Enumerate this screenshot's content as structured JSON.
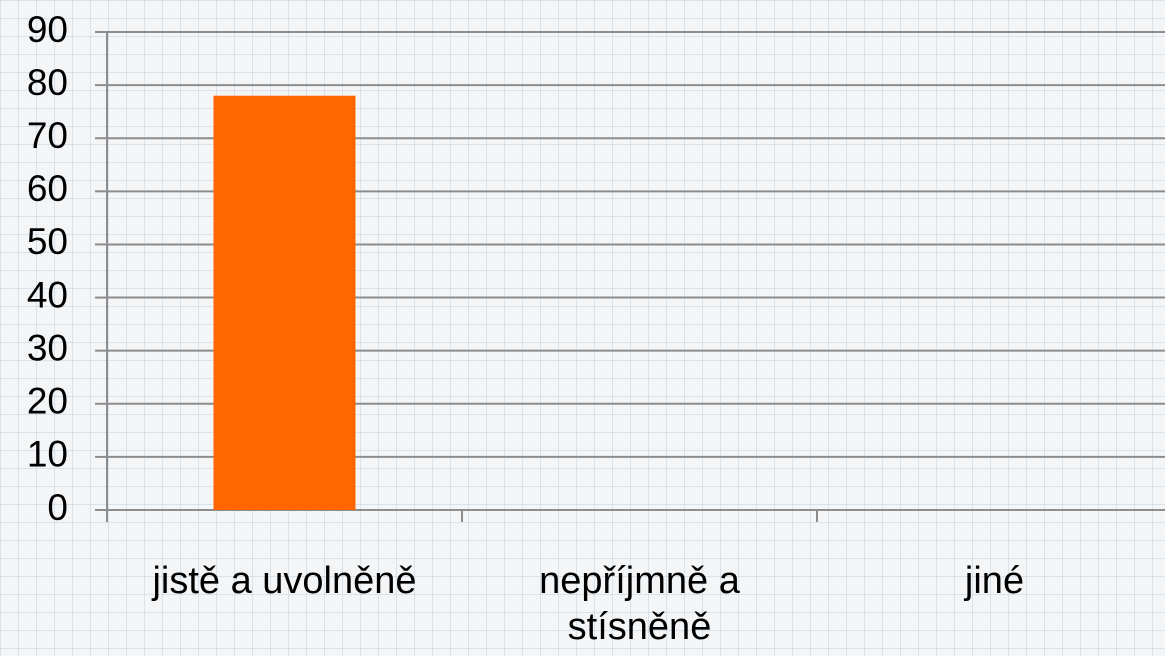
{
  "chart_data": {
    "type": "bar",
    "categories": [
      "jistě a uvolněně",
      "nepříjmně a stísněně",
      "jiné"
    ],
    "values": [
      78,
      0,
      0
    ],
    "color": "#ff6600",
    "ylim": [
      0,
      90
    ],
    "yticks": [
      0,
      10,
      20,
      30,
      40,
      50,
      60,
      70,
      80,
      90
    ],
    "grid": true
  }
}
